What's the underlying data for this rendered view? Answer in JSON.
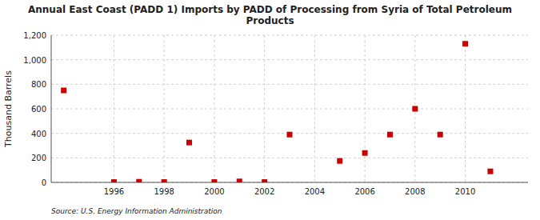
{
  "chart_data": {
    "type": "scatter",
    "title": "Annual East Coast (PADD 1) Imports by PADD of Processing from Syria of Total Petroleum\nProducts",
    "ylabel": "Thousand Barrels",
    "source": "Source: U.S. Energy Information Administration",
    "x": [
      1994,
      1996,
      1997,
      1998,
      1999,
      2000,
      2001,
      2002,
      2003,
      2005,
      2006,
      2007,
      2008,
      2009,
      2010,
      2011
    ],
    "values": [
      750,
      3,
      5,
      3,
      325,
      3,
      8,
      3,
      390,
      175,
      240,
      390,
      600,
      390,
      1130,
      90
    ],
    "color": "#cc0000",
    "marker": "square",
    "xlim": [
      1993.5,
      2012.5
    ],
    "ylim": [
      0,
      1200
    ],
    "xticks": [
      1996,
      1998,
      2000,
      2002,
      2004,
      2006,
      2008,
      2010
    ],
    "yticks": [
      0,
      200,
      400,
      600,
      800,
      {
        "value": 1000,
        "label": "1,000"
      },
      {
        "value": 1200,
        "label": "1,200"
      }
    ],
    "grid": true
  }
}
